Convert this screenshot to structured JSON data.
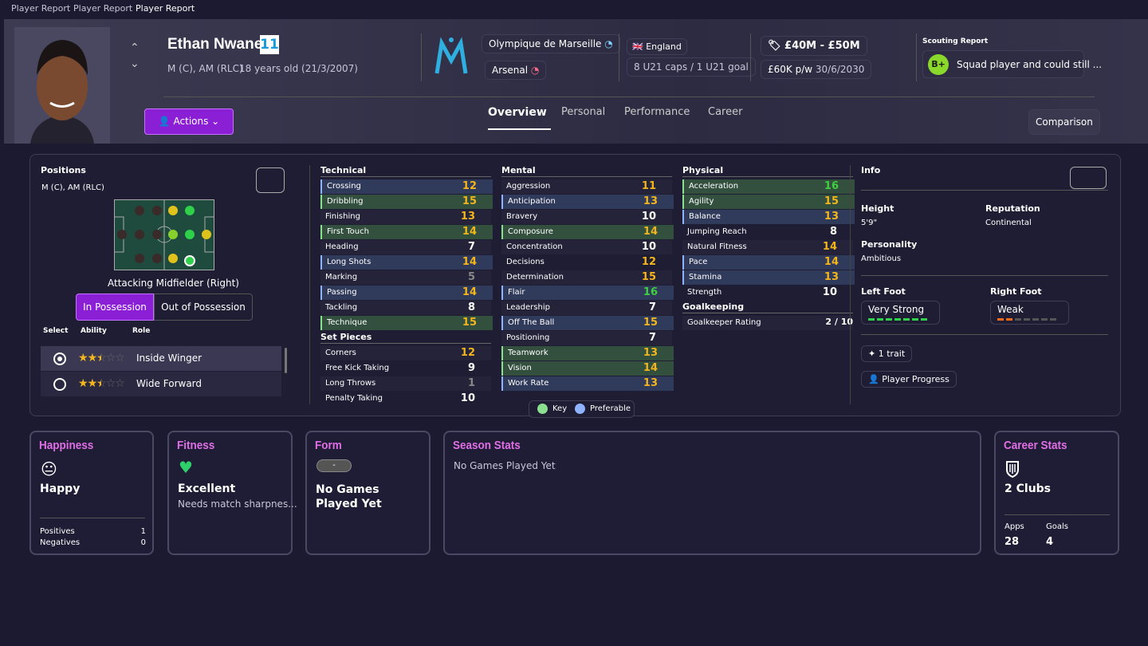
{
  "breadcrumbs": [
    "Player Report",
    "Player Report",
    "Player Report"
  ],
  "header": {
    "name": "Ethan Nwaneri",
    "number": 11,
    "positions": "M (C), AM (RLC)",
    "age": "18 years old (21/3/2007)",
    "club": "Olympique de Marseille",
    "parent_club": "Arsenal",
    "nation": "England",
    "caps": "8 U21 caps / 1 U21 goal",
    "value": "£40M - £50M",
    "wage": "£60K p/w",
    "contract": "30/6/2030",
    "scouting_title": "Scouting Report",
    "scouting_grade": "B+",
    "scouting_text": "Squad player and could still ...",
    "actions": "Actions",
    "tabs": [
      "Overview",
      "Personal",
      "Performance",
      "Career"
    ],
    "comparison": "Comparison"
  },
  "positions": {
    "title": "Positions",
    "positions": "M (C), AM (RLC)",
    "role_name": "Attacking Midfielder (Right)",
    "toggle": [
      "In Possession",
      "Out of Possession"
    ],
    "columns": [
      "Select",
      "Ability",
      "Role"
    ],
    "roles": [
      {
        "name": "Inside Winger",
        "stars": 2.5
      },
      {
        "name": "Wide Forward",
        "stars": 2.5
      }
    ]
  },
  "attribute_groups": [
    {
      "title": "Technical",
      "items": [
        {
          "name": "Crossing",
          "value": 12,
          "highlight": 1
        },
        {
          "name": "Dribbling",
          "value": 15,
          "highlight": 0
        },
        {
          "name": "Finishing",
          "value": 13
        },
        {
          "name": "First Touch",
          "value": 14,
          "highlight": 0
        },
        {
          "name": "Heading",
          "value": 7
        },
        {
          "name": "Long Shots",
          "value": 14,
          "highlight": 1
        },
        {
          "name": "Marking",
          "value": 5
        },
        {
          "name": "Passing",
          "value": 14,
          "highlight": 1
        },
        {
          "name": "Tackling",
          "value": 8
        },
        {
          "name": "Technique",
          "value": 15,
          "highlight": 0
        }
      ]
    },
    {
      "title": "Set Pieces",
      "items": [
        {
          "name": "Corners",
          "value": 12
        },
        {
          "name": "Free Kick Taking",
          "value": 9
        },
        {
          "name": "Long Throws",
          "value": 1
        },
        {
          "name": "Penalty Taking",
          "value": 10
        }
      ]
    },
    {
      "title": "Mental",
      "items": [
        {
          "name": "Aggression",
          "value": 11
        },
        {
          "name": "Anticipation",
          "value": 13,
          "highlight": 1
        },
        {
          "name": "Bravery",
          "value": 10
        },
        {
          "name": "Composure",
          "value": 14,
          "highlight": 0
        },
        {
          "name": "Concentration",
          "value": 10
        },
        {
          "name": "Decisions",
          "value": 12
        },
        {
          "name": "Determination",
          "value": 15
        },
        {
          "name": "Flair",
          "value": 16,
          "highlight": 1
        },
        {
          "name": "Leadership",
          "value": 7
        },
        {
          "name": "Off The Ball",
          "value": 15,
          "highlight": 1
        },
        {
          "name": "Positioning",
          "value": 7
        },
        {
          "name": "Teamwork",
          "value": 13,
          "highlight": 0
        },
        {
          "name": "Vision",
          "value": 14,
          "highlight": 0
        },
        {
          "name": "Work Rate",
          "value": 13,
          "highlight": 1
        }
      ]
    },
    {
      "title": "Physical",
      "items": [
        {
          "name": "Acceleration",
          "value": 16,
          "highlight": 0
        },
        {
          "name": "Agility",
          "value": 15,
          "highlight": 0
        },
        {
          "name": "Balance",
          "value": 13,
          "highlight": 1
        },
        {
          "name": "Jumping Reach",
          "value": 8
        },
        {
          "name": "Natural Fitness",
          "value": 14
        },
        {
          "name": "Pace",
          "value": 14,
          "highlight": 1
        },
        {
          "name": "Stamina",
          "value": 13,
          "highlight": 1
        },
        {
          "name": "Strength",
          "value": 10
        }
      ]
    },
    {
      "title": "Goalkeeping",
      "items": [
        {
          "name": "Goalkeeper Rating",
          "value": "2 / 10"
        }
      ]
    }
  ],
  "legend": [
    {
      "name": "Key",
      "color": "#8be08f"
    },
    {
      "name": "Preferable",
      "color": "#8fb3ff"
    }
  ],
  "info": {
    "title": "Info",
    "height_label": "Height",
    "height": "5'9\"",
    "reputation_label": "Reputation",
    "reputation": "Continental",
    "personality_label": "Personality",
    "personality": "Ambitious",
    "left_foot_label": "Left Foot",
    "left_foot": "Very Strong",
    "left_foot_level": 7,
    "right_foot_label": "Right Foot",
    "right_foot": "Weak",
    "right_foot_level": 2,
    "traits": "1 trait",
    "progress": "Player Progress"
  },
  "cards": {
    "happiness": {
      "title": "Happiness",
      "status": "Happy",
      "positives_label": "Positives",
      "positives": 1,
      "negatives_label": "Negatives",
      "negatives": 0
    },
    "fitness": {
      "title": "Fitness",
      "status": "Excellent",
      "note": "Needs match sharpnes..."
    },
    "form": {
      "title": "Form",
      "badge": "-",
      "status": "No Games Played Yet"
    },
    "season": {
      "title": "Season Stats",
      "status": "No Games Played Yet"
    },
    "career": {
      "title": "Career Stats",
      "status": "2 Clubs",
      "apps_label": "Apps",
      "apps": 28,
      "goals_label": "Goals",
      "goals": 4
    }
  }
}
